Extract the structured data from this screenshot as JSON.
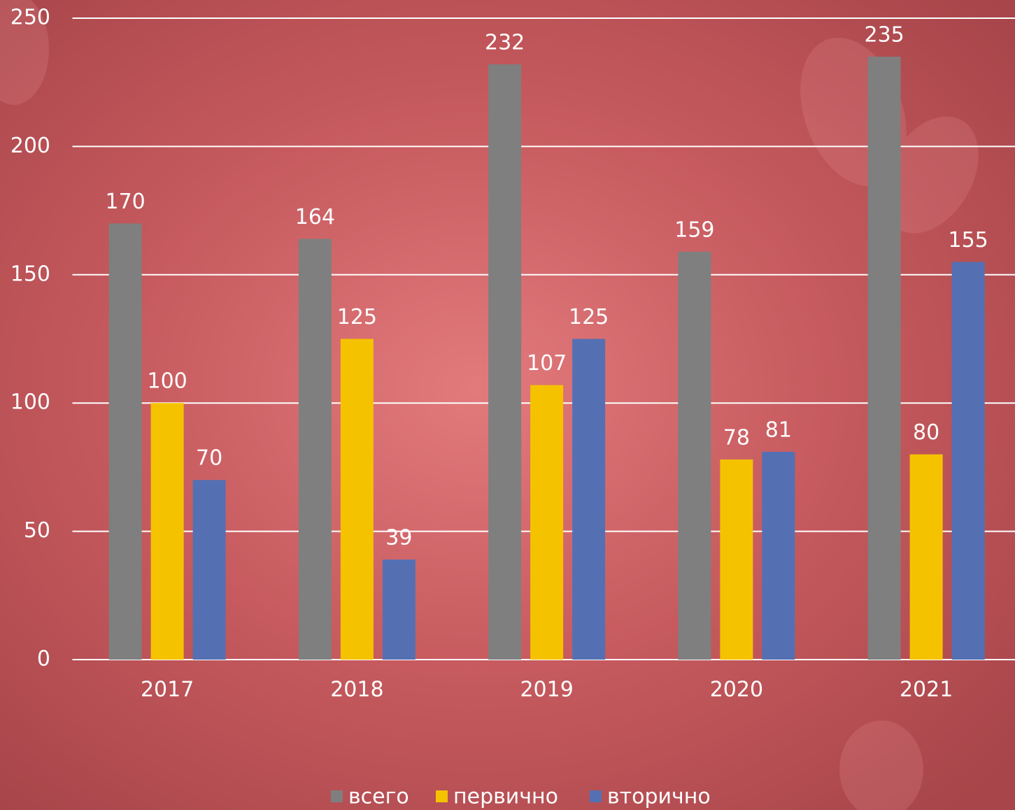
{
  "chart_data": {
    "type": "bar",
    "categories": [
      "2017",
      "2018",
      "2019",
      "2020",
      "2021"
    ],
    "series": [
      {
        "name": "всего",
        "color": "#7f7f7f",
        "values": [
          170,
          164,
          232,
          159,
          235
        ]
      },
      {
        "name": "первично",
        "color": "#f5c200",
        "values": [
          100,
          125,
          107,
          78,
          80
        ]
      },
      {
        "name": "вторично",
        "color": "#5470b3",
        "values": [
          70,
          39,
          125,
          81,
          155
        ]
      }
    ],
    "ylim": [
      0,
      250
    ],
    "yticks": [
      0,
      50,
      100,
      150,
      200,
      250
    ],
    "grid": true,
    "legend": "bottom"
  }
}
